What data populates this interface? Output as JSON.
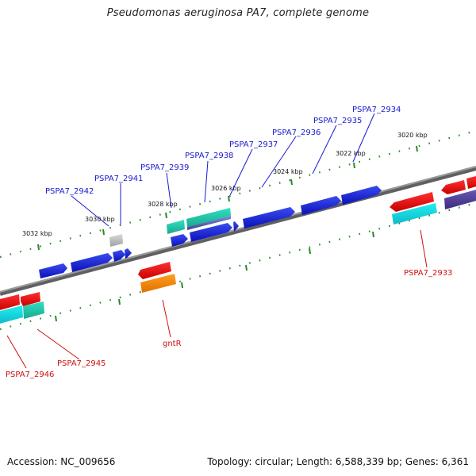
{
  "title": "Pseudomonas aeruginosa PA7, complete genome",
  "footer": {
    "accession": "Accession: NC_009656",
    "topology": "Topology: circular; Length: 6,588,339 bp; Genes: 6,361"
  },
  "colors": {
    "upper_label": "#1a1ad0",
    "lower_label": "#d01010",
    "tick": "#2a8a2a",
    "backbone": "#7a7a7a"
  },
  "ticks": {
    "upper": [
      "3032 kbp",
      "3030 kbp",
      "3028 kbp",
      "3026 kbp",
      "3024 kbp",
      "3022 kbp",
      "3020 kbp"
    ]
  },
  "genes": {
    "upper_labels": [
      "PSPA7_2942",
      "PSPA7_2941",
      "PSPA7_2939",
      "PSPA7_2938",
      "PSPA7_2937",
      "PSPA7_2936",
      "PSPA7_2935",
      "PSPA7_2934"
    ],
    "lower_labels": [
      "PSPA7_2946",
      "PSPA7_2945",
      "gntR",
      "PSPA7_2933"
    ]
  }
}
